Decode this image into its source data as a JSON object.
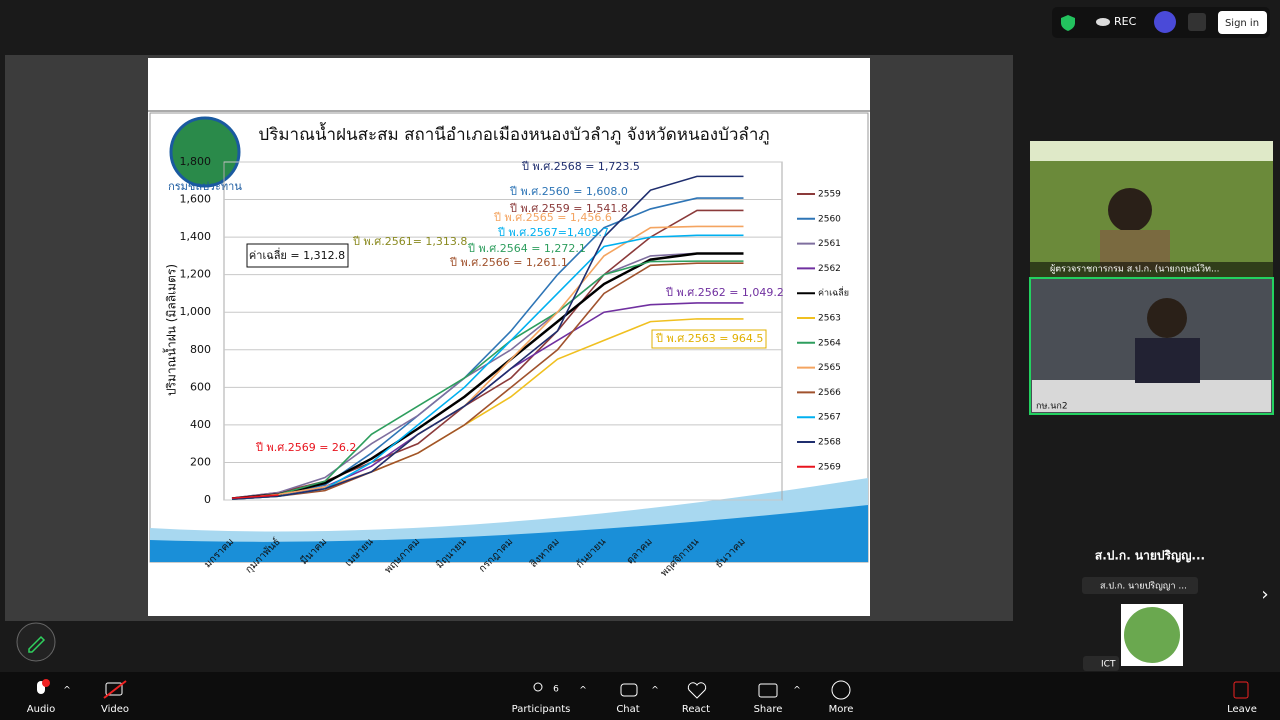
{
  "top_bar": {
    "rec": "REC",
    "sign_in": "Sign in"
  },
  "slide": {
    "logo_text": "กรมชลประทาน",
    "chart_data": {
      "type": "line",
      "title": "ปริมาณน้ำฝนสะสม สถานีอำเภอเมืองหนองบัวลำภู จังหวัดหนองบัวลำภู",
      "ylabel": "ปริมาณน้ำฝน (มิลลิเมตร)",
      "categories": [
        "มกราคม",
        "กุมภาพันธ์",
        "มีนาคม",
        "เมษายน",
        "พฤษภาคม",
        "มิถุนายน",
        "กรกฎาคม",
        "สิงหาคม",
        "กันยายน",
        "ตุลาคม",
        "พฤศจิกายน",
        "ธันวาคม"
      ],
      "ylim": [
        0,
        1800
      ],
      "yticks": [
        0,
        200,
        400,
        600,
        800,
        {
          "value": 1000,
          "label": "1,000"
        },
        {
          "value": 1200,
          "label": "1,200"
        },
        {
          "value": 1400,
          "label": "1,400"
        },
        {
          "value": 1600,
          "label": "1,600"
        },
        {
          "value": 1800,
          "label": "1,800"
        }
      ],
      "grid": true,
      "series": [
        {
          "name": "2559",
          "color": "#8b3a3a",
          "values": [
            10,
            40,
            100,
            200,
            300,
            500,
            650,
            900,
            1200,
            1400,
            1541.8,
            1541.8
          ]
        },
        {
          "name": "2560",
          "color": "#2e75b6",
          "values": [
            10,
            30,
            80,
            250,
            450,
            650,
            900,
            1200,
            1450,
            1550,
            1608,
            1608
          ]
        },
        {
          "name": "2561",
          "color": "#7f6f9f",
          "values": [
            10,
            40,
            120,
            300,
            450,
            650,
            800,
            1000,
            1200,
            1300,
            1313.8,
            1313.8
          ]
        },
        {
          "name": "2562",
          "color": "#7030a0",
          "values": [
            5,
            20,
            70,
            180,
            350,
            500,
            700,
            850,
            1000,
            1040,
            1049.2,
            1049.2
          ]
        },
        {
          "name": "ค่าเฉลี่ย",
          "color": "#000000",
          "values": [
            8,
            30,
            90,
            220,
            380,
            550,
            750,
            950,
            1150,
            1280,
            1312.8,
            1312.8
          ]
        },
        {
          "name": "2563",
          "color": "#f0c020",
          "values": [
            5,
            20,
            60,
            150,
            250,
            400,
            550,
            750,
            850,
            950,
            964.5,
            964.5
          ]
        },
        {
          "name": "2564",
          "color": "#2e9e5e",
          "values": [
            5,
            30,
            100,
            350,
            500,
            650,
            850,
            1000,
            1200,
            1270,
            1272.1,
            1272.1
          ]
        },
        {
          "name": "2565",
          "color": "#f4a460",
          "values": [
            5,
            30,
            70,
            150,
            350,
            500,
            750,
            1000,
            1300,
            1450,
            1456.6,
            1456.6
          ]
        },
        {
          "name": "2566",
          "color": "#a0522d",
          "values": [
            5,
            20,
            50,
            150,
            250,
            400,
            600,
            800,
            1100,
            1250,
            1261.1,
            1261.1
          ]
        },
        {
          "name": "2567",
          "color": "#00b0f0",
          "values": [
            5,
            20,
            60,
            200,
            400,
            600,
            850,
            1100,
            1350,
            1400,
            1409.7,
            1409.7
          ]
        },
        {
          "name": "2568",
          "color": "#1f2e6e",
          "values": [
            5,
            20,
            60,
            150,
            350,
            500,
            700,
            900,
            1400,
            1650,
            1723.5,
            1723.5
          ]
        },
        {
          "name": "2569",
          "color": "#e8141e",
          "values": [
            10,
            26.2,
            null,
            null,
            null,
            null,
            null,
            null,
            null,
            null,
            null,
            null
          ]
        }
      ],
      "annotations": [
        {
          "text": "ปี พ.ศ.2568 = 1,723.5",
          "color": "#1f2e6e"
        },
        {
          "text": "ปี พ.ศ.2560 = 1,608.0",
          "color": "#2e75b6"
        },
        {
          "text": "ปี พ.ศ.2559 = 1,541.8",
          "color": "#8b3a3a"
        },
        {
          "text": "ปี พ.ศ.2565 = 1,456.6",
          "color": "#f4a460"
        },
        {
          "text": "ปี พ.ศ.2567=1,409.7",
          "color": "#00b0f0"
        },
        {
          "text": "ปี พ.ศ.2561= 1,313.8",
          "color": "#8a8a20"
        },
        {
          "text": "ปี พ.ศ.2564 = 1,272.1",
          "color": "#2e9e5e"
        },
        {
          "text": "ปี พ.ศ.2566 = 1,261.1",
          "color": "#a0522d"
        },
        {
          "text": "ปี พ.ศ.2562 = 1,049.2",
          "color": "#7030a0"
        },
        {
          "text": "ปี พ.ศ.2563 = 964.5",
          "color": "#e0b000"
        },
        {
          "text": "ปี พ.ศ.2569 = 26.2",
          "color": "#e8141e"
        }
      ],
      "average_box": "ค่าเฉลี่ย = 1,312.8"
    }
  },
  "participants": {
    "tile1_name": "ผู้ตรวจราชการกรม ส.ป.ก. (นายกฤษณ์วิท...",
    "tile2_name": "กษ.นก2",
    "active_speaker": "ส.ป.ก. นายปริญญ...",
    "speaker_label": "ส.ป.ก. นายปริญญา ...",
    "ict_label": "ICT"
  },
  "toolbar": {
    "audio": "Audio",
    "video": "Video",
    "participants": "Participants",
    "participant_count": "6",
    "chat": "Chat",
    "react": "React",
    "share": "Share",
    "more": "More",
    "leave": "Leave"
  }
}
